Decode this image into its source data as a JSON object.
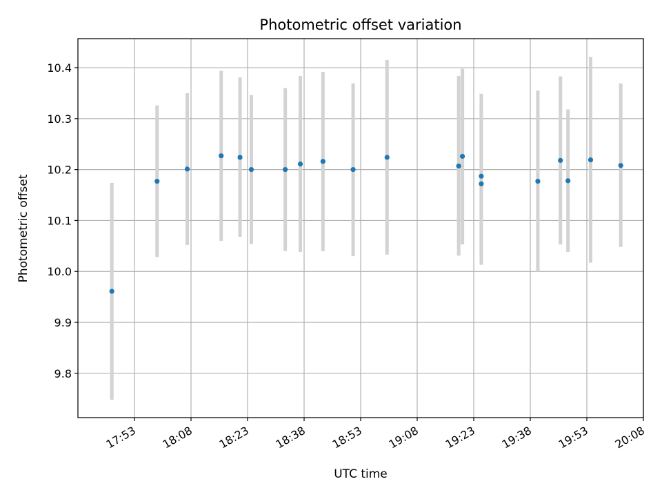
{
  "chart_data": {
    "type": "scatter",
    "title": "Photometric offset variation",
    "xlabel": "UTC time",
    "ylabel": "Photometric offset",
    "grid": true,
    "x_ticks": [
      "17:53",
      "18:08",
      "18:23",
      "18:38",
      "18:53",
      "19:08",
      "19:23",
      "19:38",
      "19:53",
      "20:08"
    ],
    "y_ticks": [
      "9.8",
      "9.9",
      "10.0",
      "10.1",
      "10.2",
      "10.3",
      "10.4"
    ],
    "xlim": [
      "17:38",
      "20:08"
    ],
    "ylim": [
      9.713,
      10.457
    ],
    "colors": {
      "point": "#1f77b4",
      "errorbar": "#d3d3d3",
      "grid": "#b0b0b0"
    },
    "points": [
      {
        "x": "17:47",
        "y": 9.961,
        "low": 9.748,
        "high": 10.174
      },
      {
        "x": "17:59",
        "y": 10.177,
        "low": 10.028,
        "high": 10.326
      },
      {
        "x": "18:07",
        "y": 10.201,
        "low": 10.052,
        "high": 10.35
      },
      {
        "x": "18:16",
        "y": 10.227,
        "low": 10.06,
        "high": 10.394
      },
      {
        "x": "18:21",
        "y": 10.224,
        "low": 10.068,
        "high": 10.381
      },
      {
        "x": "18:24",
        "y": 10.2,
        "low": 10.054,
        "high": 10.346
      },
      {
        "x": "18:33",
        "y": 10.2,
        "low": 10.04,
        "high": 10.36
      },
      {
        "x": "18:37",
        "y": 10.211,
        "low": 10.038,
        "high": 10.384
      },
      {
        "x": "18:43",
        "y": 10.216,
        "low": 10.04,
        "high": 10.392
      },
      {
        "x": "18:51",
        "y": 10.2,
        "low": 10.03,
        "high": 10.369
      },
      {
        "x": "19:00",
        "y": 10.224,
        "low": 10.033,
        "high": 10.415
      },
      {
        "x": "19:19",
        "y": 10.207,
        "low": 10.031,
        "high": 10.384
      },
      {
        "x": "19:20",
        "y": 10.226,
        "low": 10.053,
        "high": 10.398
      },
      {
        "x": "19:25",
        "y": 10.187,
        "low": 10.025,
        "high": 10.349
      },
      {
        "x": "19:25",
        "y": 10.172,
        "low": 10.013,
        "high": 10.331
      },
      {
        "x": "19:40",
        "y": 10.177,
        "low": 10.0,
        "high": 10.355
      },
      {
        "x": "19:46",
        "y": 10.218,
        "low": 10.053,
        "high": 10.383
      },
      {
        "x": "19:48",
        "y": 10.178,
        "low": 10.038,
        "high": 10.318
      },
      {
        "x": "19:54",
        "y": 10.219,
        "low": 10.017,
        "high": 10.421
      },
      {
        "x": "20:02",
        "y": 10.208,
        "low": 10.048,
        "high": 10.369
      }
    ]
  }
}
